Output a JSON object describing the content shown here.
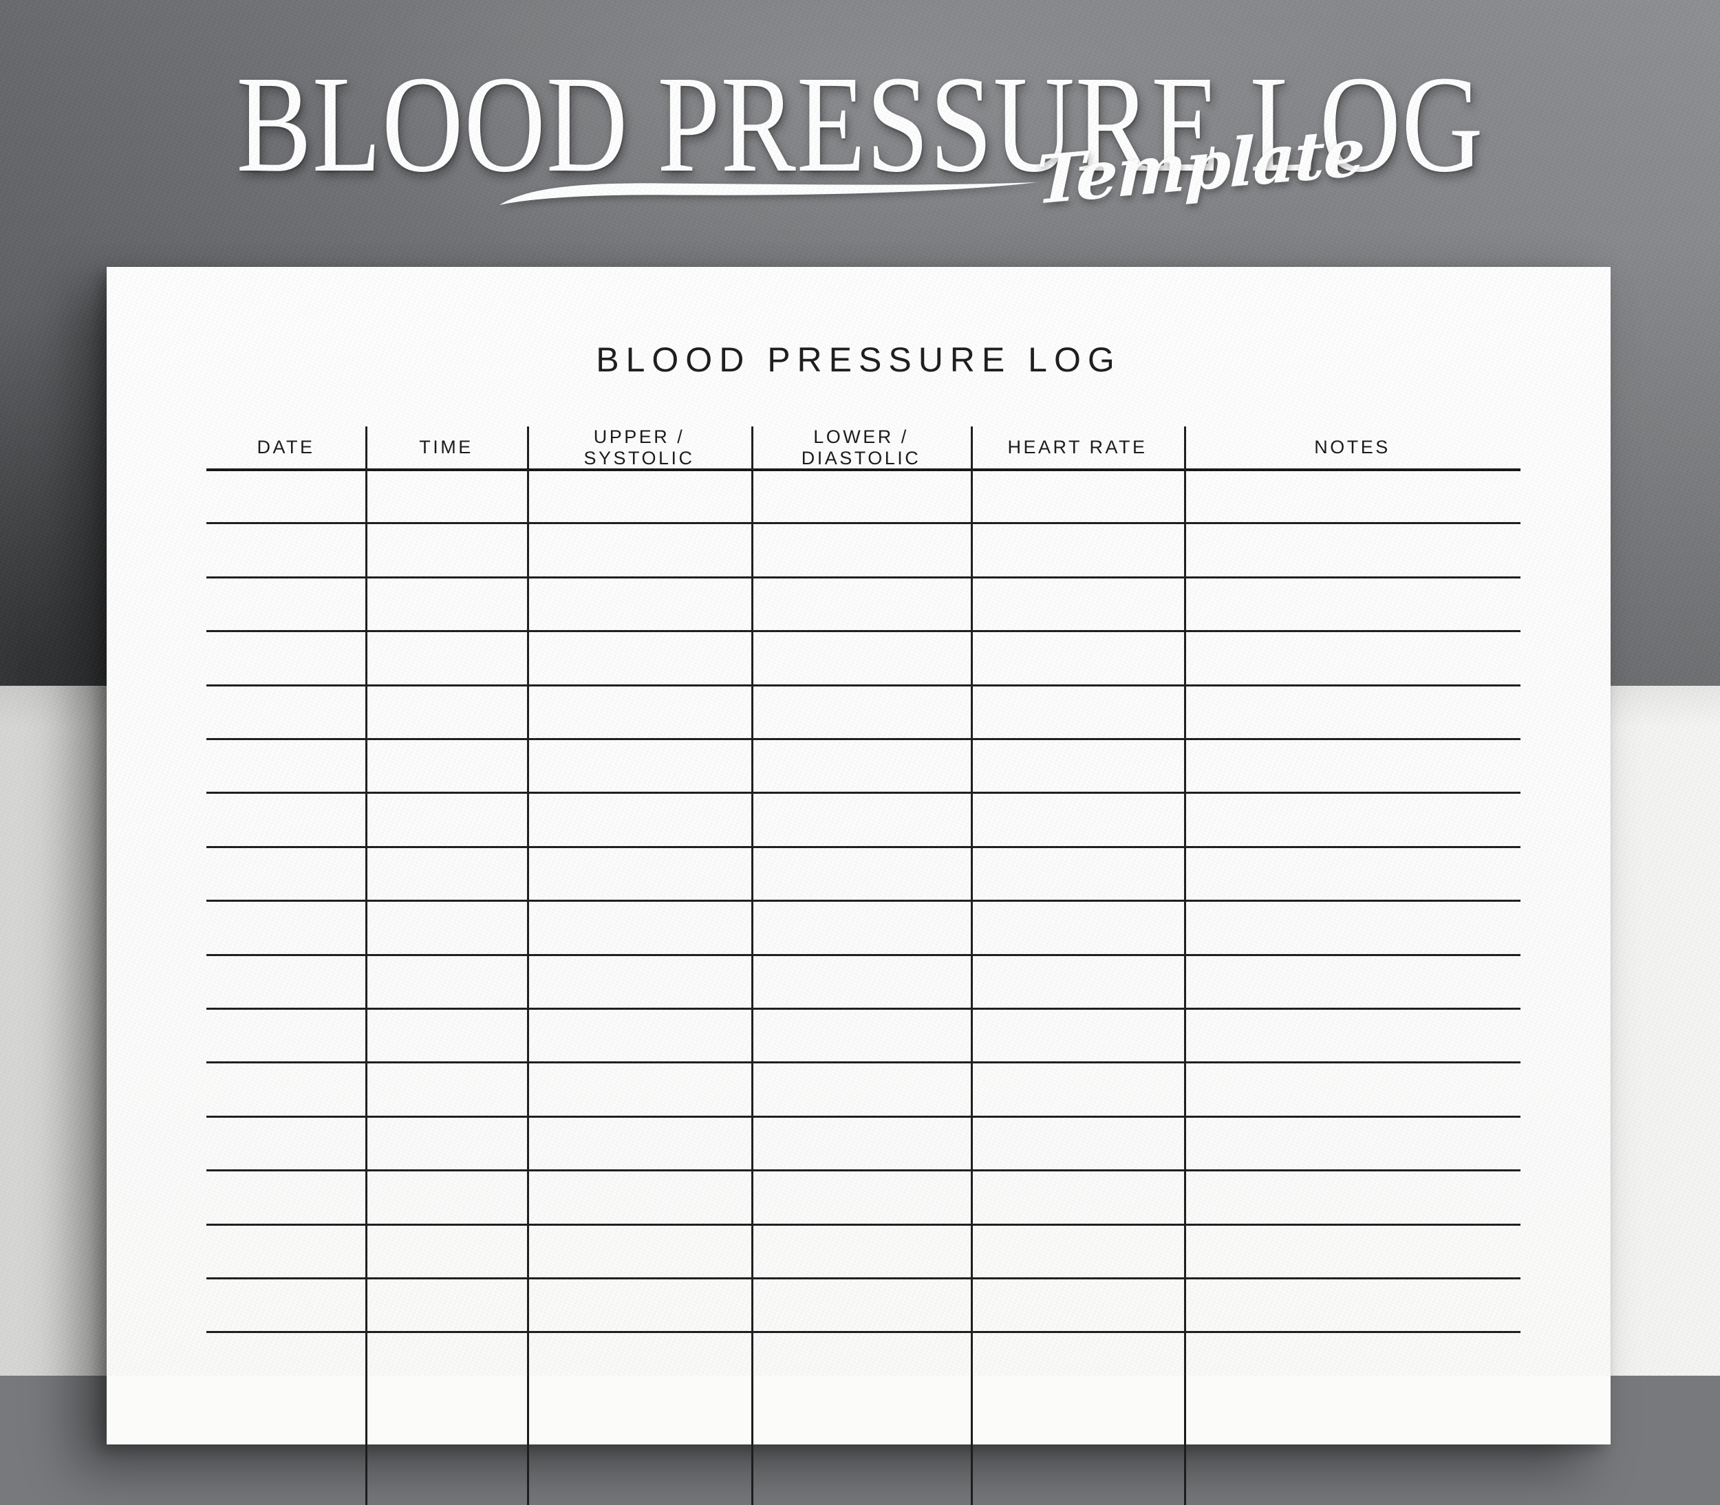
{
  "banner": {
    "title": "BLOOD PRESSURE LOG",
    "subtitle": "Template",
    "underline_icon": "swoosh-underline",
    "text_color": "#ffffff",
    "backdrop_color": "#7b7d80"
  },
  "page": {
    "heading": "BLOOD PRESSURE LOG",
    "paper_color": "#fdfdfd",
    "ink_color": "#1c1c1c",
    "table": {
      "columns": [
        {
          "label": "DATE"
        },
        {
          "label": "TIME"
        },
        {
          "label": "UPPER /\nSYSTOLIC"
        },
        {
          "label": "LOWER /\nDIASTOLIC"
        },
        {
          "label": "HEART RATE"
        },
        {
          "label": "NOTES"
        }
      ],
      "row_count": 17,
      "rows_are_empty": true
    }
  },
  "scene": {
    "surface_color": "#ededeb"
  }
}
